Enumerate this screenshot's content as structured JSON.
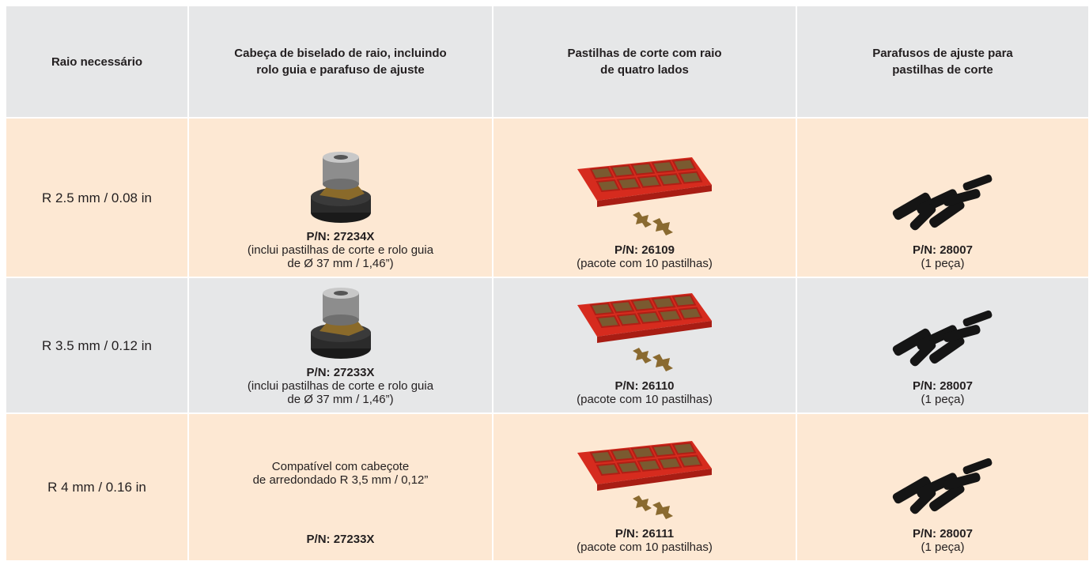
{
  "table": {
    "headers": [
      [
        "Raio necessário"
      ],
      [
        "Cabeça de biselado de raio, incluindo",
        "rolo guia e parafuso de ajuste"
      ],
      [
        "Pastilhas de corte com raio",
        "de quatro lados"
      ],
      [
        "Parafusos de ajuste para",
        "pastilhas de corte"
      ]
    ],
    "rows": [
      {
        "radius": "R 2.5 mm / 0.08 in",
        "head": {
          "pn": "P/N: 27234X",
          "note": [
            "(inclui pastilhas de corte e rolo guia",
            "de Ø 37 mm / 1,46”)"
          ]
        },
        "inserts": {
          "pn": "P/N: 26109",
          "note": [
            "(pacote com 10 pastilhas)"
          ]
        },
        "screws": {
          "pn": "P/N: 28007",
          "note": [
            "(1 peça)"
          ]
        }
      },
      {
        "radius": "R 3.5 mm / 0.12 in",
        "head": {
          "pn": "P/N: 27233X",
          "note": [
            "(inclui pastilhas de corte e rolo guia",
            "de Ø 37 mm / 1,46”)"
          ]
        },
        "inserts": {
          "pn": "P/N: 26110",
          "note": [
            "(pacote com 10 pastilhas)"
          ]
        },
        "screws": {
          "pn": "P/N: 28007",
          "note": [
            "(1 peça)"
          ]
        }
      },
      {
        "radius": "R 4 mm / 0.16 in",
        "head": {
          "text": [
            "Compatível com cabeçote",
            "de arredondado R 3,5 mm / 0,12”"
          ],
          "pn": "P/N: 27233X"
        },
        "inserts": {
          "pn": "P/N: 26111",
          "note": [
            "(pacote com 10 pastilhas)"
          ]
        },
        "screws": {
          "pn": "P/N: 28007",
          "note": [
            "(1 peça)"
          ]
        }
      }
    ]
  }
}
